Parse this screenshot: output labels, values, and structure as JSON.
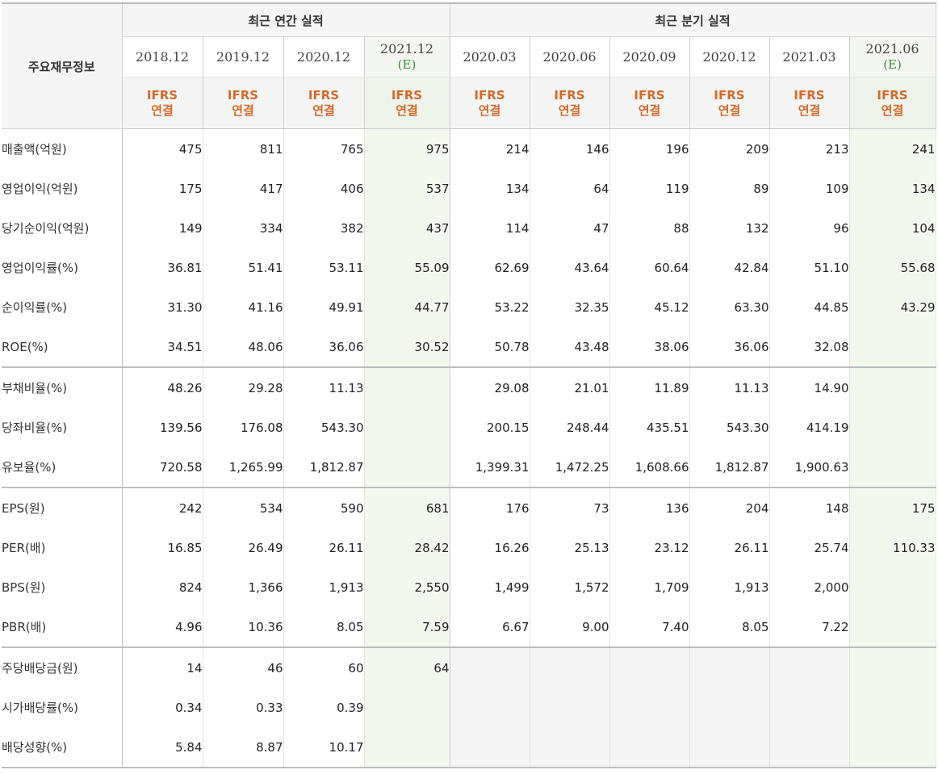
{
  "table": {
    "corner_label": "주요재무정보",
    "groups": {
      "annual": "최근 연간 실적",
      "quarterly": "최근 분기 실적"
    },
    "periods": [
      {
        "date": "2018.12",
        "est": "",
        "basis1": "IFRS",
        "basis2": "연결"
      },
      {
        "date": "2019.12",
        "est": "",
        "basis1": "IFRS",
        "basis2": "연결"
      },
      {
        "date": "2020.12",
        "est": "",
        "basis1": "IFRS",
        "basis2": "연결"
      },
      {
        "date": "2021.12",
        "est": "(E)",
        "basis1": "IFRS",
        "basis2": "연결"
      },
      {
        "date": "2020.03",
        "est": "",
        "basis1": "IFRS",
        "basis2": "연결"
      },
      {
        "date": "2020.06",
        "est": "",
        "basis1": "IFRS",
        "basis2": "연결"
      },
      {
        "date": "2020.09",
        "est": "",
        "basis1": "IFRS",
        "basis2": "연결"
      },
      {
        "date": "2020.12",
        "est": "",
        "basis1": "IFRS",
        "basis2": "연결"
      },
      {
        "date": "2021.03",
        "est": "",
        "basis1": "IFRS",
        "basis2": "연결"
      },
      {
        "date": "2021.06",
        "est": "(E)",
        "basis1": "IFRS",
        "basis2": "연결"
      }
    ],
    "rows": [
      {
        "label": "매출액(억원)",
        "values": [
          "475",
          "811",
          "765",
          "975",
          "214",
          "146",
          "196",
          "209",
          "213",
          "241"
        ]
      },
      {
        "label": "영업이익(억원)",
        "values": [
          "175",
          "417",
          "406",
          "537",
          "134",
          "64",
          "119",
          "89",
          "109",
          "134"
        ]
      },
      {
        "label": "당기순이익(억원)",
        "values": [
          "149",
          "334",
          "382",
          "437",
          "114",
          "47",
          "88",
          "132",
          "96",
          "104"
        ]
      },
      {
        "label": "영업이익률(%)",
        "values": [
          "36.81",
          "51.41",
          "53.11",
          "55.09",
          "62.69",
          "43.64",
          "60.64",
          "42.84",
          "51.10",
          "55.68"
        ]
      },
      {
        "label": "순이익률(%)",
        "values": [
          "31.30",
          "41.16",
          "49.91",
          "44.77",
          "53.22",
          "32.35",
          "45.12",
          "63.30",
          "44.85",
          "43.29"
        ]
      },
      {
        "label": "ROE(%)",
        "values": [
          "34.51",
          "48.06",
          "36.06",
          "30.52",
          "50.78",
          "43.48",
          "38.06",
          "36.06",
          "32.08",
          ""
        ]
      },
      {
        "label": "부채비율(%)",
        "values": [
          "48.26",
          "29.28",
          "11.13",
          "",
          "29.08",
          "21.01",
          "11.89",
          "11.13",
          "14.90",
          ""
        ]
      },
      {
        "label": "당좌비율(%)",
        "values": [
          "139.56",
          "176.08",
          "543.30",
          "",
          "200.15",
          "248.44",
          "435.51",
          "543.30",
          "414.19",
          ""
        ]
      },
      {
        "label": "유보율(%)",
        "values": [
          "720.58",
          "1,265.99",
          "1,812.87",
          "",
          "1,399.31",
          "1,472.25",
          "1,608.66",
          "1,812.87",
          "1,900.63",
          ""
        ]
      },
      {
        "label": "EPS(원)",
        "values": [
          "242",
          "534",
          "590",
          "681",
          "176",
          "73",
          "136",
          "204",
          "148",
          "175"
        ]
      },
      {
        "label": "PER(배)",
        "values": [
          "16.85",
          "26.49",
          "26.11",
          "28.42",
          "16.26",
          "25.13",
          "23.12",
          "26.11",
          "25.74",
          "110.33"
        ]
      },
      {
        "label": "BPS(원)",
        "values": [
          "824",
          "1,366",
          "1,913",
          "2,550",
          "1,499",
          "1,572",
          "1,709",
          "1,913",
          "2,000",
          ""
        ]
      },
      {
        "label": "PBR(배)",
        "values": [
          "4.96",
          "10.36",
          "8.05",
          "7.59",
          "6.67",
          "9.00",
          "7.40",
          "8.05",
          "7.22",
          ""
        ]
      },
      {
        "label": "주당배당금(원)",
        "values": [
          "14",
          "46",
          "60",
          "64",
          "",
          "",
          "",
          "",
          "",
          ""
        ]
      },
      {
        "label": "시가배당률(%)",
        "values": [
          "0.34",
          "0.33",
          "0.39",
          "",
          "",
          "",
          "",
          "",
          "",
          ""
        ]
      },
      {
        "label": "배당성향(%)",
        "values": [
          "5.84",
          "8.87",
          "10.17",
          "",
          "",
          "",
          "",
          "",
          "",
          ""
        ]
      }
    ]
  }
}
